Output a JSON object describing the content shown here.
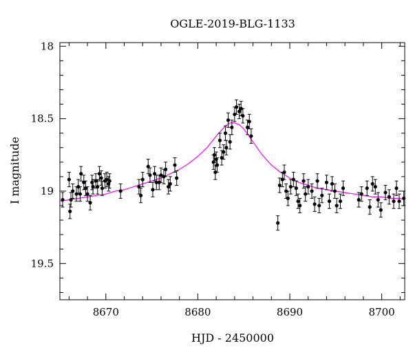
{
  "chart_data": {
    "type": "scatter",
    "title": "OGLE-2019-BLG-1133",
    "xlabel": "HJD - 2450000",
    "ylabel": "I magnitude",
    "xlim": [
      8665,
      8702.5
    ],
    "ylim": [
      19.75,
      17.975
    ],
    "y_inverted": true,
    "xticks": [
      8670,
      8680,
      8690,
      8700
    ],
    "yticks": [
      18,
      18.5,
      19,
      19.5
    ],
    "grid": false,
    "colors": {
      "points": "#000000",
      "model": "#ff00ff"
    },
    "series": [
      {
        "kind": "points_with_errorbars",
        "x": [
          8665.3,
          8666.0,
          8666.1,
          8666.2,
          8666.4,
          8666.8,
          8667.0,
          8667.2,
          8667.3,
          8667.6,
          8667.8,
          8668.0,
          8668.3,
          8668.5,
          8668.6,
          8668.9,
          8669.1,
          8669.3,
          8669.5,
          8669.6,
          8669.9,
          8670.1,
          8670.3,
          8670.4,
          8671.6,
          8673.6,
          8673.8,
          8674.0,
          8674.6,
          8674.8,
          8675.1,
          8675.3,
          8675.5,
          8675.8,
          8676.0,
          8676.3,
          8676.5,
          8676.8,
          8677.0,
          8677.5,
          8677.7,
          8681.7,
          8681.8,
          8681.9,
          8682.0,
          8682.1,
          8682.4,
          8682.6,
          8682.8,
          8683.0,
          8683.1,
          8683.3,
          8683.5,
          8683.7,
          8684.0,
          8684.2,
          8684.5,
          8684.7,
          8684.9,
          8685.4,
          8685.6,
          8685.8,
          8688.7,
          8688.9,
          8689.2,
          8689.4,
          8689.6,
          8689.8,
          8690.1,
          8690.4,
          8690.7,
          8690.9,
          8691.1,
          8691.5,
          8691.7,
          8692.0,
          8692.4,
          8692.7,
          8693.0,
          8693.2,
          8693.5,
          8694.0,
          8694.3,
          8694.6,
          8694.9,
          8695.1,
          8695.5,
          8695.8,
          8697.5,
          8697.8,
          8698.4,
          8698.7,
          8699.0,
          8699.3,
          8699.6,
          8699.9,
          8700.4,
          8700.8,
          8701.3,
          8701.6,
          8701.9,
          8702.4
        ],
        "y": [
          19.06,
          18.92,
          19.14,
          19.06,
          19.0,
          19.02,
          18.97,
          19.02,
          18.88,
          18.94,
          18.98,
          19.02,
          19.08,
          18.94,
          18.97,
          18.93,
          18.97,
          18.88,
          18.91,
          18.98,
          18.93,
          18.92,
          18.95,
          18.93,
          19.0,
          18.97,
          19.03,
          18.92,
          18.83,
          18.89,
          18.99,
          18.88,
          18.94,
          18.94,
          18.89,
          18.9,
          18.85,
          18.97,
          18.95,
          18.82,
          18.91,
          18.8,
          18.75,
          18.87,
          18.78,
          18.82,
          18.65,
          18.77,
          18.73,
          18.6,
          18.7,
          18.51,
          18.66,
          18.56,
          18.47,
          18.42,
          18.45,
          18.43,
          18.48,
          18.56,
          18.52,
          18.62,
          19.22,
          18.96,
          18.92,
          18.87,
          19.0,
          19.05,
          18.97,
          18.92,
          18.98,
          19.07,
          19.1,
          18.93,
          19.02,
          18.97,
          19.0,
          19.09,
          18.93,
          19.1,
          19.03,
          18.94,
          19.07,
          18.95,
          19.0,
          19.1,
          19.07,
          18.98,
          19.06,
          19.02,
          18.98,
          19.11,
          18.95,
          18.97,
          19.06,
          19.13,
          19.01,
          19.04,
          19.07,
          18.98,
          19.07,
          19.05
        ],
        "yerr": 0.05
      },
      {
        "kind": "model_curve",
        "x": [
          8665,
          8666,
          8667,
          8668,
          8669,
          8670,
          8671,
          8672,
          8673,
          8674,
          8675,
          8676,
          8677,
          8678,
          8679,
          8680,
          8681,
          8682,
          8683,
          8683.5,
          8684,
          8684.5,
          8685,
          8686,
          8687,
          8688,
          8689,
          8690,
          8691,
          8692,
          8693,
          8694,
          8695,
          8696,
          8697,
          8698,
          8699,
          8700,
          8701,
          8702,
          8702.5
        ],
        "y": [
          19.07,
          19.06,
          19.05,
          19.04,
          19.03,
          19.02,
          19.0,
          18.99,
          18.97,
          18.95,
          18.93,
          18.91,
          18.88,
          18.85,
          18.81,
          18.76,
          18.7,
          18.62,
          18.55,
          18.53,
          18.53,
          18.54,
          18.57,
          18.66,
          18.75,
          18.82,
          18.87,
          18.91,
          18.94,
          18.96,
          18.98,
          18.99,
          19.0,
          19.01,
          19.02,
          19.03,
          19.04,
          19.04,
          19.05,
          19.05,
          19.06
        ]
      }
    ]
  }
}
